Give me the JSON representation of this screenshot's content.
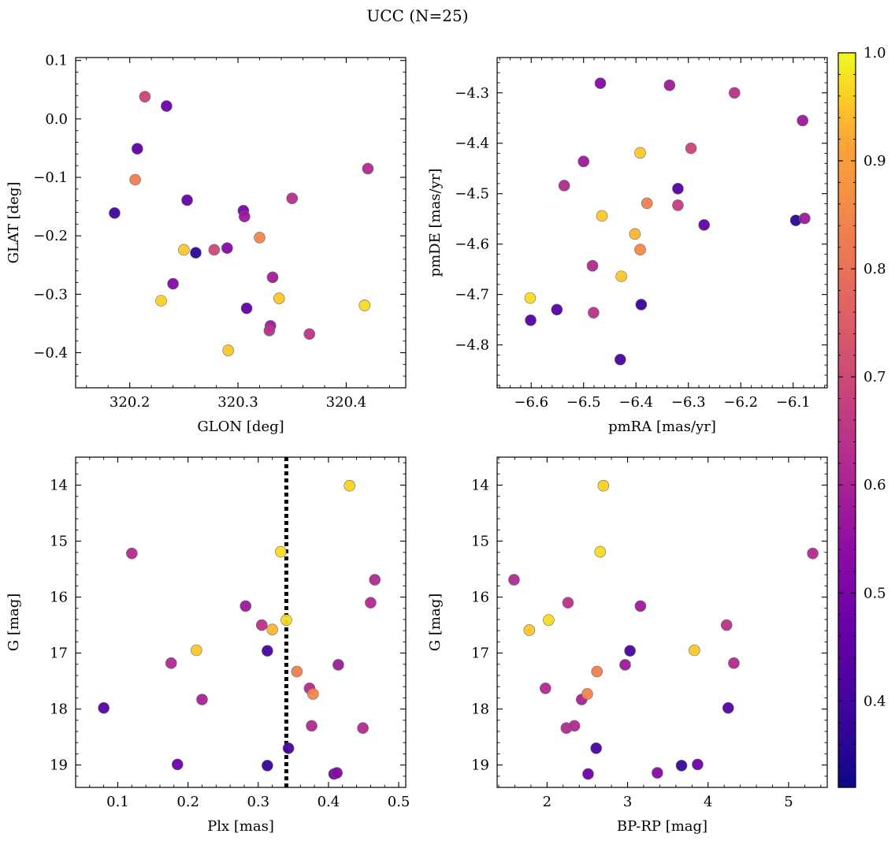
{
  "figure": {
    "suptitle": "UCC (N=25)"
  },
  "colorbar": {
    "vmin": 0.32,
    "vmax": 1.0,
    "ticks": [
      0.4,
      0.5,
      0.6,
      0.7,
      0.8,
      0.9,
      1.0
    ],
    "tick_labels": [
      "0.4",
      "0.5",
      "0.6",
      "0.7",
      "0.8",
      "0.9",
      "1.0"
    ],
    "colormap": "plasma"
  },
  "chart_data": [
    {
      "type": "scatter",
      "id": "glon-glat",
      "xlabel": "GLON [deg]",
      "ylabel": "GLAT [deg]",
      "xlim": [
        320.15,
        320.455
      ],
      "ylim": [
        -0.46,
        0.105
      ],
      "xticks": [
        320.2,
        320.3,
        320.4
      ],
      "xtick_labels": [
        "320.2",
        "320.3",
        "320.4"
      ],
      "yticks": [
        0.1,
        0.0,
        -0.1,
        -0.2,
        -0.3,
        -0.4
      ],
      "ytick_labels": [
        "0.1",
        "0.0",
        "−0.1",
        "−0.2",
        "−0.3",
        "−0.4"
      ],
      "x": [
        320.186,
        320.207,
        320.205,
        320.214,
        320.234,
        320.229,
        320.253,
        320.24,
        320.25,
        320.261,
        320.278,
        320.29,
        320.291,
        320.305,
        320.306,
        320.308,
        320.32,
        320.332,
        320.33,
        320.329,
        320.338,
        320.35,
        320.366,
        320.417,
        320.42
      ],
      "y": [
        -0.161,
        -0.051,
        -0.104,
        0.038,
        0.022,
        -0.311,
        -0.139,
        -0.282,
        -0.224,
        -0.229,
        -0.224,
        -0.221,
        -0.396,
        -0.157,
        -0.167,
        -0.324,
        -0.203,
        -0.271,
        -0.354,
        -0.362,
        -0.307,
        -0.136,
        -0.368,
        -0.319,
        -0.085
      ],
      "c": [
        0.36,
        0.42,
        0.82,
        0.67,
        0.45,
        0.96,
        0.44,
        0.5,
        0.95,
        0.33,
        0.68,
        0.5,
        0.95,
        0.47,
        0.55,
        0.43,
        0.84,
        0.56,
        0.55,
        0.62,
        0.95,
        0.61,
        0.63,
        0.97,
        0.6
      ]
    },
    {
      "type": "scatter",
      "id": "pmra-pmde",
      "xlabel": "pmRA [mas/yr]",
      "ylabel": "pmDE [mas/yr]",
      "xlim": [
        -6.665,
        -6.035
      ],
      "ylim": [
        -4.885,
        -4.23
      ],
      "xticks": [
        -6.6,
        -6.5,
        -6.4,
        -6.3,
        -6.2,
        -6.1
      ],
      "xtick_labels": [
        "−6.6",
        "−6.5",
        "−6.4",
        "−6.3",
        "−6.2",
        "−6.1"
      ],
      "yticks": [
        -4.3,
        -4.4,
        -4.5,
        -4.6,
        -4.7,
        -4.8
      ],
      "ytick_labels": [
        "−4.3",
        "−4.4",
        "−4.5",
        "−4.6",
        "−4.7",
        "−4.8"
      ],
      "x": [
        -6.602,
        -6.601,
        -6.551,
        -6.537,
        -6.5,
        -6.483,
        -6.481,
        -6.468,
        -6.465,
        -6.428,
        -6.43,
        -6.402,
        -6.392,
        -6.392,
        -6.39,
        -6.379,
        -6.336,
        -6.32,
        -6.32,
        -6.295,
        -6.27,
        -6.212,
        -6.095,
        -6.082,
        -6.078
      ],
      "y": [
        -4.707,
        -4.751,
        -4.73,
        -4.484,
        -4.436,
        -4.643,
        -4.736,
        -4.281,
        -4.544,
        -4.664,
        -4.829,
        -4.58,
        -4.419,
        -4.611,
        -4.72,
        -4.519,
        -4.285,
        -4.49,
        -4.523,
        -4.41,
        -4.562,
        -4.3,
        -4.553,
        -4.355,
        -4.549
      ],
      "c": [
        0.97,
        0.4,
        0.4,
        0.6,
        0.55,
        0.6,
        0.62,
        0.5,
        0.95,
        0.95,
        0.38,
        0.93,
        0.95,
        0.84,
        0.35,
        0.82,
        0.55,
        0.4,
        0.65,
        0.67,
        0.43,
        0.62,
        0.33,
        0.55,
        0.55
      ]
    },
    {
      "type": "scatter",
      "id": "plx-g",
      "xlabel": "Plx [mas]",
      "ylabel": "G [mag]",
      "xlim": [
        0.04,
        0.51
      ],
      "ylim": [
        19.4,
        13.5
      ],
      "inverted_y": true,
      "vline": {
        "x": 0.34,
        "style": "dotted",
        "color": "#000000"
      },
      "xticks": [
        0.1,
        0.2,
        0.3,
        0.4,
        0.5
      ],
      "xtick_labels": [
        "0.1",
        "0.2",
        "0.3",
        "0.4",
        "0.5"
      ],
      "yticks": [
        14,
        15,
        16,
        17,
        18,
        19
      ],
      "ytick_labels": [
        "14",
        "15",
        "16",
        "17",
        "18",
        "19"
      ],
      "x": [
        0.08,
        0.12,
        0.176,
        0.185,
        0.212,
        0.22,
        0.282,
        0.305,
        0.313,
        0.313,
        0.32,
        0.332,
        0.34,
        0.343,
        0.355,
        0.373,
        0.376,
        0.378,
        0.408,
        0.412,
        0.414,
        0.43,
        0.449,
        0.46,
        0.466
      ],
      "y": [
        17.98,
        15.22,
        17.18,
        18.99,
        16.95,
        17.83,
        16.16,
        16.5,
        16.96,
        19.01,
        16.58,
        15.19,
        16.41,
        18.7,
        17.33,
        17.63,
        18.3,
        17.73,
        19.16,
        19.14,
        17.21,
        14.01,
        18.34,
        16.1,
        15.69
      ],
      "c": [
        0.4,
        0.6,
        0.6,
        0.45,
        0.95,
        0.58,
        0.55,
        0.62,
        0.38,
        0.35,
        0.93,
        0.97,
        0.97,
        0.38,
        0.82,
        0.6,
        0.6,
        0.84,
        0.45,
        0.5,
        0.55,
        0.96,
        0.6,
        0.6,
        0.6
      ]
    },
    {
      "type": "scatter",
      "id": "bprp-g",
      "xlabel": "BP-RP [mag]",
      "ylabel": "G [mag]",
      "xlim": [
        1.38,
        5.48
      ],
      "ylim": [
        19.4,
        13.5
      ],
      "inverted_y": true,
      "xticks": [
        2,
        3,
        4,
        5
      ],
      "xtick_labels": [
        "2",
        "3",
        "4",
        "5"
      ],
      "yticks": [
        14,
        15,
        16,
        17,
        18,
        19
      ],
      "ytick_labels": [
        "14",
        "15",
        "16",
        "17",
        "18",
        "19"
      ],
      "x": [
        1.59,
        1.78,
        1.98,
        2.02,
        2.24,
        2.26,
        2.34,
        2.43,
        2.5,
        2.51,
        2.61,
        2.62,
        2.66,
        2.7,
        2.97,
        3.03,
        3.16,
        3.37,
        3.67,
        3.83,
        3.87,
        4.23,
        4.25,
        4.32,
        5.3
      ],
      "y": [
        15.69,
        16.59,
        17.63,
        16.41,
        18.34,
        16.1,
        18.3,
        17.83,
        17.73,
        19.16,
        18.7,
        17.33,
        15.19,
        14.01,
        17.21,
        16.96,
        16.16,
        19.14,
        19.01,
        16.95,
        18.99,
        16.5,
        17.98,
        17.18,
        15.22
      ],
      "c": [
        0.6,
        0.95,
        0.6,
        0.97,
        0.6,
        0.62,
        0.6,
        0.58,
        0.84,
        0.45,
        0.38,
        0.82,
        0.97,
        0.96,
        0.55,
        0.38,
        0.55,
        0.5,
        0.35,
        0.95,
        0.45,
        0.62,
        0.4,
        0.6,
        0.6
      ]
    }
  ]
}
